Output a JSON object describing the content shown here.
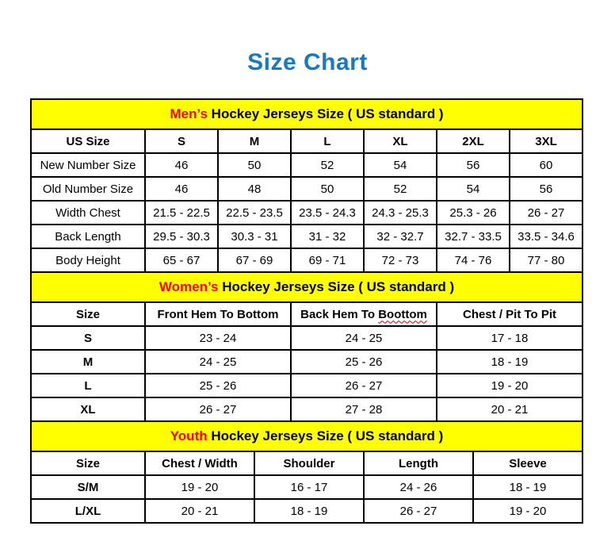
{
  "page": {
    "title": "Size Chart"
  },
  "colors": {
    "title_blue": "#1878C4",
    "banner_yellow": "#FFFF00",
    "accent_red": "#FF0000",
    "squiggle_red": "#C00000",
    "border_black": "#000000"
  },
  "men": {
    "banner_highlight": "Men’s",
    "banner_rest": "Hockey Jerseys Size ( US standard )",
    "columns": [
      "US Size",
      "S",
      "M",
      "L",
      "XL",
      "2XL",
      "3XL"
    ],
    "rows": [
      {
        "label": "New Number Size",
        "values": [
          "46",
          "50",
          "52",
          "54",
          "56",
          "60"
        ]
      },
      {
        "label": "Old Number Size",
        "values": [
          "46",
          "48",
          "50",
          "52",
          "54",
          "56"
        ]
      },
      {
        "label": "Width Chest",
        "values": [
          "21.5 - 22.5",
          "22.5 - 23.5",
          "23.5 - 24.3",
          "24.3 - 25.3",
          "25.3 - 26",
          "26 - 27"
        ]
      },
      {
        "label": "Back Length",
        "values": [
          "29.5 - 30.3",
          "30.3 - 31",
          "31 - 32",
          "32 - 32.7",
          "32.7 - 33.5",
          "33.5 - 34.6"
        ]
      },
      {
        "label": "Body Height",
        "values": [
          "65 - 67",
          "67 - 69",
          "69 - 71",
          "72 - 73",
          "74 - 76",
          "77 - 80"
        ]
      }
    ]
  },
  "women": {
    "banner_highlight": "Women’s",
    "banner_rest": "Hockey Jerseys Size ( US standard )",
    "columns": {
      "size": "Size",
      "front": "Front Hem To Bottom",
      "back_prefix": "Back Hem To",
      "back_word": "Boottom",
      "chest": "Chest / Pit To Pit"
    },
    "rows": [
      {
        "label": "S",
        "values": [
          "23 - 24",
          "24 - 25",
          "17 - 18"
        ]
      },
      {
        "label": "M",
        "values": [
          "24 - 25",
          "25 - 26",
          "18 - 19"
        ]
      },
      {
        "label": "L",
        "values": [
          "25 - 26",
          "26 - 27",
          "19 - 20"
        ]
      },
      {
        "label": "XL",
        "values": [
          "26 - 27",
          "27 - 28",
          "20 - 21"
        ]
      }
    ]
  },
  "youth": {
    "banner_highlight": "Youth",
    "banner_rest": "Hockey Jerseys Size ( US standard )",
    "columns": [
      "Size",
      "Chest / Width",
      "Shoulder",
      "Length",
      "Sleeve"
    ],
    "rows": [
      {
        "label": "S/M",
        "values": [
          "19 - 20",
          "16 - 17",
          "24 - 26",
          "18 - 19"
        ]
      },
      {
        "label": "L/XL",
        "values": [
          "20 - 21",
          "18 - 19",
          "26 - 27",
          "19 - 20"
        ]
      }
    ]
  }
}
